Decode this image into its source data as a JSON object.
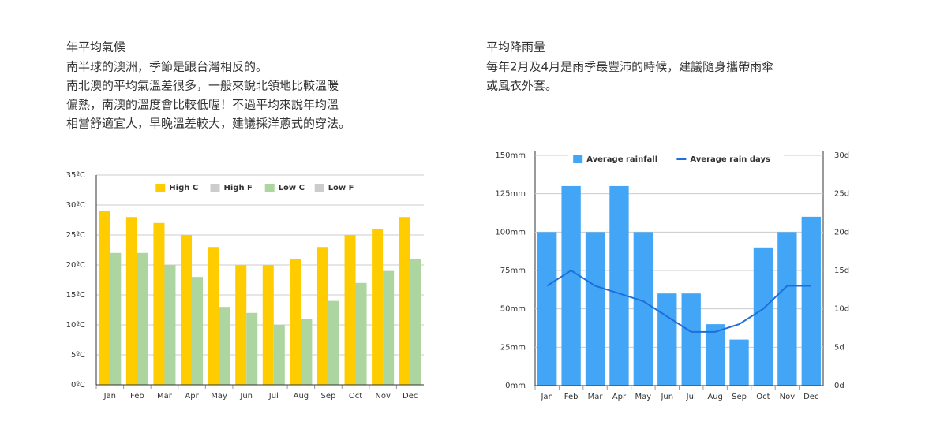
{
  "sections": [
    {
      "heading": "年平均氣候",
      "lines": [
        "南半球的澳洲，季節是跟台灣相反的。",
        "南北澳的平均氣溫差很多，一般來說北領地比較溫暖",
        "偏熱，南澳的溫度會比較低喔！不過平均來說年均溫",
        "相當舒適宜人，早晚溫差較大，建議採洋蔥式的穿法。"
      ]
    },
    {
      "heading": "平均降雨量",
      "lines": [
        "每年2月及4月是雨季最豐沛的時候，建議隨身攜帶雨傘",
        "或風衣外套。"
      ]
    }
  ],
  "chart_data": [
    {
      "type": "bar",
      "categories": [
        "Jan",
        "Feb",
        "Mar",
        "Apr",
        "May",
        "Jun",
        "Jul",
        "Aug",
        "Sep",
        "Oct",
        "Nov",
        "Dec"
      ],
      "series": [
        {
          "name": "High C",
          "color": "#ffcc00",
          "values": [
            29,
            28,
            27,
            25,
            23,
            20,
            20,
            21,
            23,
            25,
            26,
            28
          ]
        },
        {
          "name": "Low C",
          "color": "#acd59f",
          "values": [
            22,
            22,
            20,
            18,
            13,
            12,
            10,
            11,
            14,
            17,
            19,
            21
          ]
        }
      ],
      "legend_inactive": [
        {
          "name": "High F",
          "color": "#cccccc"
        },
        {
          "name": "Low F",
          "color": "#cccccc"
        }
      ],
      "ylim": [
        0,
        35
      ],
      "yticks": [
        {
          "value": 0,
          "label": "0ºC"
        },
        {
          "value": 5,
          "label": "5ºC"
        },
        {
          "value": 10,
          "label": "10ºC"
        },
        {
          "value": 15,
          "label": "15ºC"
        },
        {
          "value": 20,
          "label": "20ºC"
        },
        {
          "value": 25,
          "label": "25ºC"
        },
        {
          "value": 30,
          "label": "30ºC"
        },
        {
          "value": 35,
          "label": "35ºC"
        }
      ],
      "grid": true
    },
    {
      "type": "bar-line",
      "categories": [
        "Jan",
        "Feb",
        "Mar",
        "Apr",
        "May",
        "Jun",
        "Jul",
        "Aug",
        "Sep",
        "Oct",
        "Nov",
        "Dec"
      ],
      "series": [
        {
          "name": "Average rainfall",
          "color": "#42a5f5",
          "values": [
            100,
            130,
            100,
            130,
            100,
            60,
            60,
            40,
            30,
            90,
            100,
            110
          ]
        },
        {
          "name": "Average rain days",
          "color": "#1e6fd9",
          "axis": "y2",
          "values": [
            13,
            15,
            13,
            12,
            11,
            9,
            7,
            7,
            8,
            10,
            13,
            13
          ]
        }
      ],
      "ylim": [
        0,
        150
      ],
      "yticks": [
        {
          "value": 0,
          "label": "0mm"
        },
        {
          "value": 25,
          "label": "25mm"
        },
        {
          "value": 50,
          "label": "50mm"
        },
        {
          "value": 75,
          "label": "75mm"
        },
        {
          "value": 100,
          "label": "100mm"
        },
        {
          "value": 125,
          "label": "125mm"
        },
        {
          "value": 150,
          "label": "150mm"
        }
      ],
      "y2lim": [
        0,
        30
      ],
      "y2ticks": [
        {
          "value": 0,
          "label": "0d"
        },
        {
          "value": 5,
          "label": "5d"
        },
        {
          "value": 10,
          "label": "10d"
        },
        {
          "value": 15,
          "label": "15d"
        },
        {
          "value": 20,
          "label": "20d"
        },
        {
          "value": 25,
          "label": "25d"
        },
        {
          "value": 30,
          "label": "30d"
        }
      ],
      "grid": true
    }
  ]
}
